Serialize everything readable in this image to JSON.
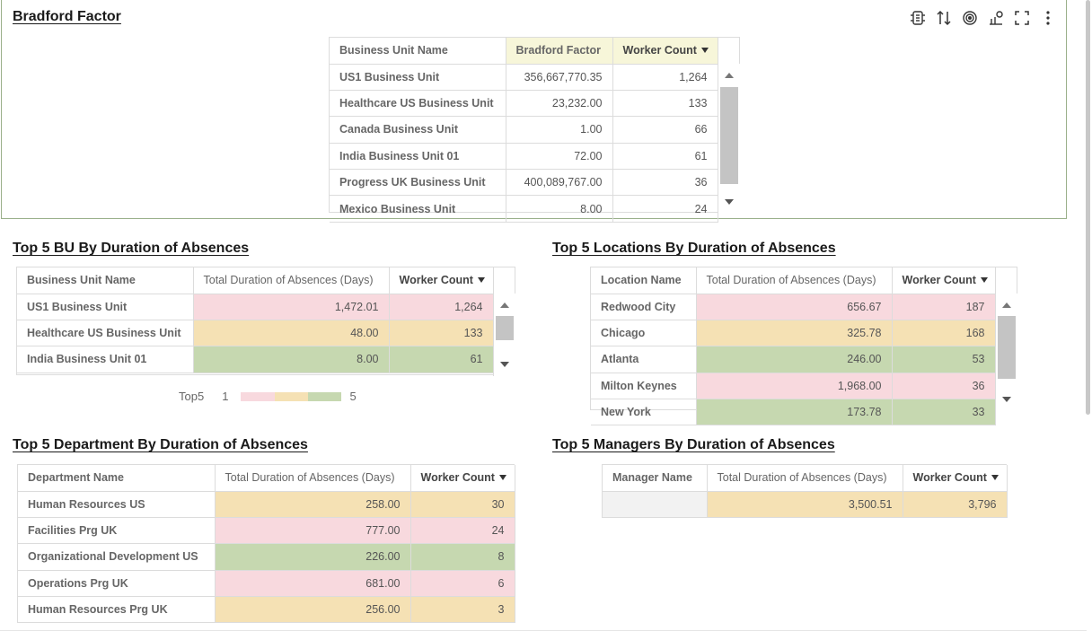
{
  "bradford": {
    "title": "Bradford Factor",
    "headers": [
      "Business Unit Name",
      "Bradford Factor",
      "Worker Count"
    ],
    "rows": [
      [
        "US1 Business Unit",
        "356,667,770.35",
        "1,264"
      ],
      [
        "Healthcare US Business Unit",
        "23,232.00",
        "133"
      ],
      [
        "Canada Business Unit",
        "1.00",
        "66"
      ],
      [
        "India Business Unit 01",
        "72.00",
        "61"
      ],
      [
        "Progress UK Business Unit",
        "400,089,767.00",
        "36"
      ],
      [
        "Mexico Business Unit",
        "8.00",
        "24"
      ]
    ]
  },
  "toolbar": {
    "icons": [
      "dataset-icon",
      "sort-icon",
      "target-icon",
      "chart-settings-icon",
      "fullscreen-icon",
      "more-icon"
    ]
  },
  "bu": {
    "title": "Top 5 BU By Duration of Absences",
    "headers": [
      "Business Unit Name",
      "Total Duration of Absences (Days)",
      "Worker Count"
    ],
    "rows": [
      [
        "US1 Business Unit",
        "1,472.01",
        "1,264"
      ],
      [
        "Healthcare US Business Unit",
        "48.00",
        "133"
      ],
      [
        "India Business Unit 01",
        "8.00",
        "61"
      ]
    ],
    "legend": {
      "label": "Top5",
      "min": "1",
      "max": "5"
    }
  },
  "loc": {
    "title": "Top 5 Locations By Duration of Absences",
    "headers": [
      "Location Name",
      "Total Duration of Absences (Days)",
      "Worker Count"
    ],
    "rows": [
      [
        "Redwood City",
        "656.67",
        "187"
      ],
      [
        "Chicago",
        "325.78",
        "168"
      ],
      [
        "Atlanta",
        "246.00",
        "53"
      ],
      [
        "Milton Keynes",
        "1,968.00",
        "36"
      ],
      [
        "New York",
        "173.78",
        "33"
      ]
    ]
  },
  "dept": {
    "title": "Top 5 Department By Duration of Absences",
    "headers": [
      "Department Name",
      "Total Duration of Absences (Days)",
      "Worker Count"
    ],
    "rows": [
      [
        "Human Resources US",
        "258.00",
        "30"
      ],
      [
        "Facilities Prg UK",
        "777.00",
        "24"
      ],
      [
        "Organizational Development US",
        "226.00",
        "8"
      ],
      [
        "Operations Prg UK",
        "681.00",
        "6"
      ],
      [
        "Human Resources Prg UK",
        "256.00",
        "3"
      ]
    ]
  },
  "mgr": {
    "title": "Top 5 Managers By Duration of Absences",
    "headers": [
      "Manager Name",
      "Total Duration of Absences (Days)",
      "Worker Count"
    ],
    "rows": [
      [
        "",
        "3,500.51",
        "3,796"
      ]
    ]
  },
  "colors": {
    "pink": "#f8d9de",
    "tan": "#f5e1b4",
    "green": "#c6d8b0",
    "frame": "#9ab08a"
  }
}
